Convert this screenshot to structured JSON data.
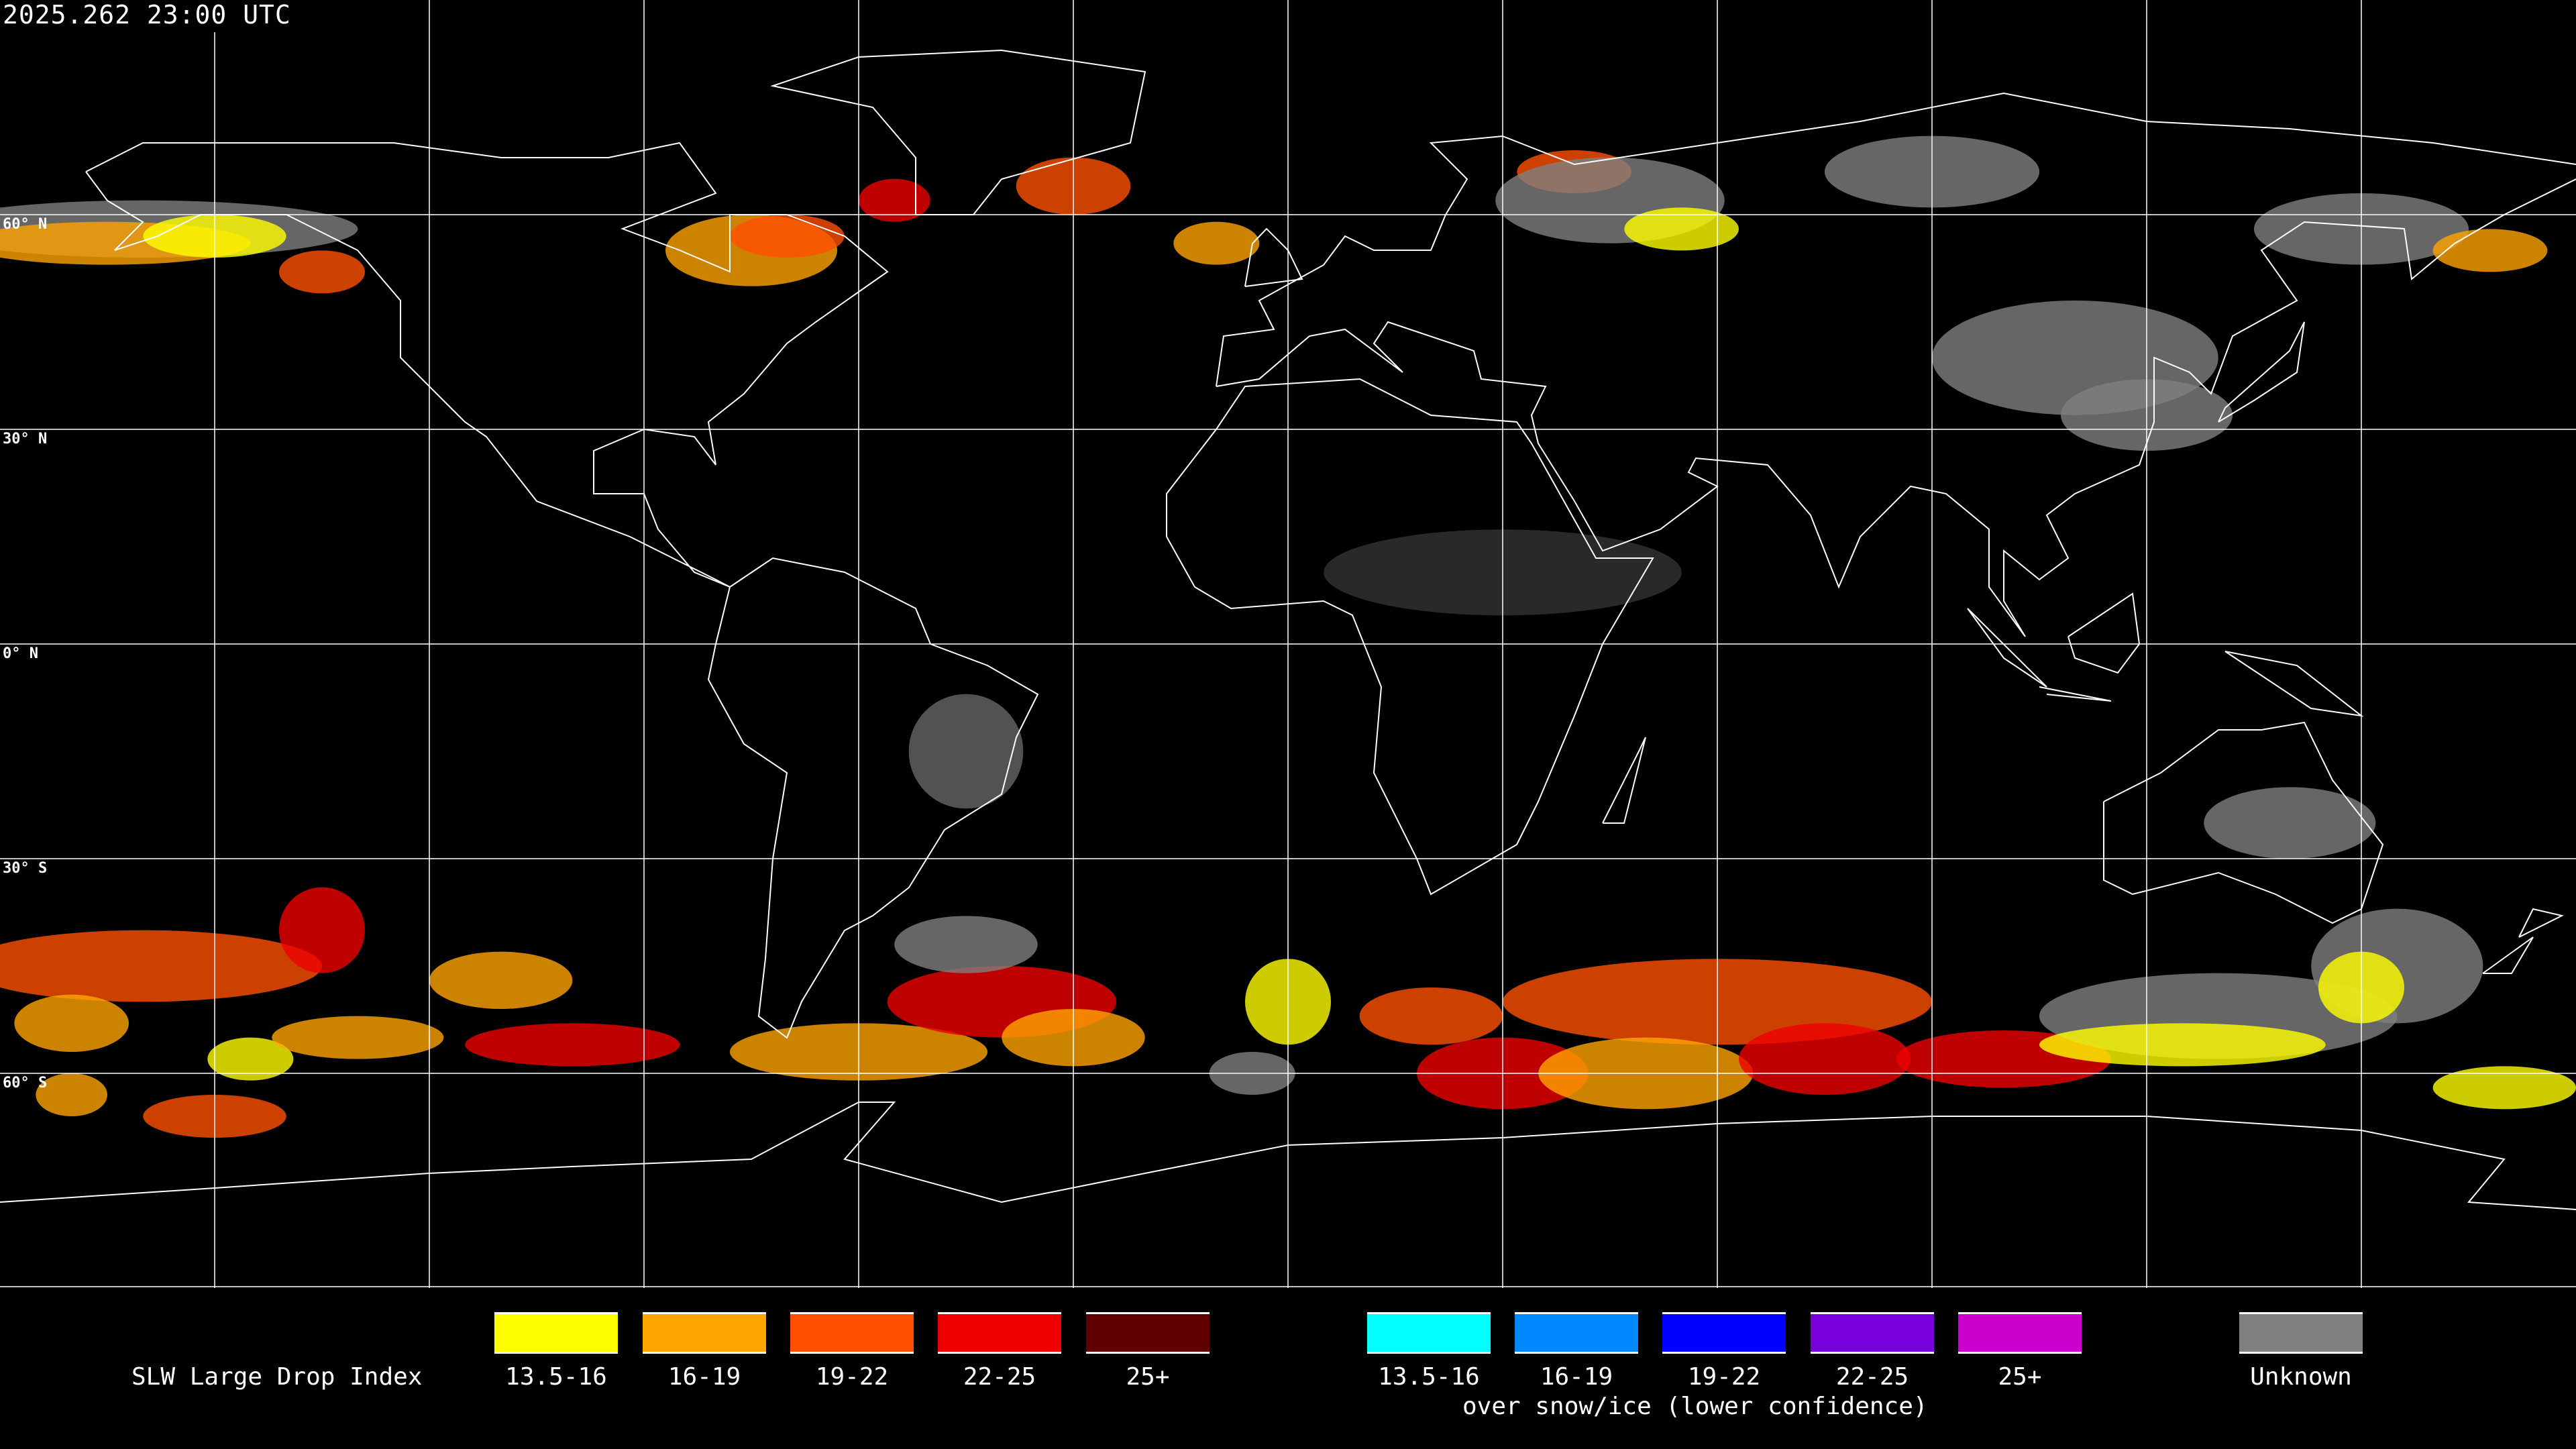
{
  "title": "2025.262 23:00 UTC",
  "latitude_labels": [
    "60° N",
    "30° N",
    "0° N",
    "30° S",
    "60° S"
  ],
  "legend": {
    "title": "SLW Large Drop Index",
    "subtitle": "over snow/ice (lower confidence)",
    "main": [
      {
        "label": "13.5-16",
        "color": "#ffff00"
      },
      {
        "label": "16-19",
        "color": "#ffa500"
      },
      {
        "label": "19-22",
        "color": "#ff5000"
      },
      {
        "label": "22-25",
        "color": "#ee0000"
      },
      {
        "label": "25+",
        "color": "#600000"
      }
    ],
    "snow_ice": [
      {
        "label": "13.5-16",
        "color": "#00ffff"
      },
      {
        "label": "16-19",
        "color": "#0088ff"
      },
      {
        "label": "19-22",
        "color": "#0000ff"
      },
      {
        "label": "22-25",
        "color": "#7700dd"
      },
      {
        "label": "25+",
        "color": "#cc00cc"
      }
    ],
    "unknown": {
      "label": "Unknown",
      "color": "#808080"
    }
  }
}
